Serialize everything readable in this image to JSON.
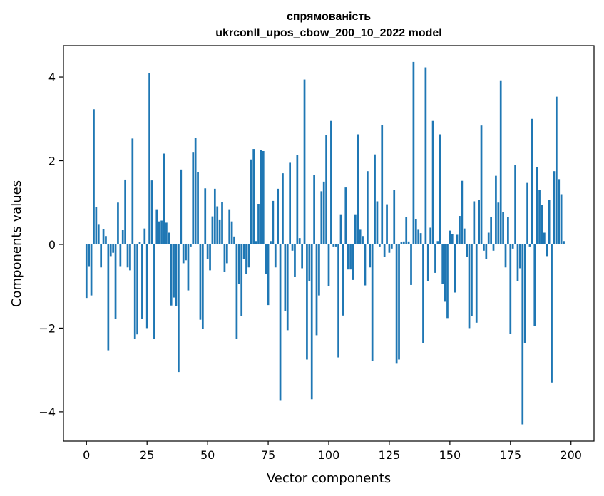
{
  "chart_data": {
    "type": "bar",
    "title_line1": "спрямованість",
    "title_line2": "ukrconll_upos_cbow_200_10_2022 model",
    "xlabel": "Vector components",
    "ylabel": "Components values",
    "xlim": [
      -9.5,
      209.5
    ],
    "ylim": [
      -4.7,
      4.75
    ],
    "xticks": [
      0,
      25,
      50,
      75,
      100,
      125,
      150,
      175,
      200
    ],
    "yticks": [
      -4,
      -2,
      0,
      2,
      4
    ],
    "ytick_labels": [
      "−4",
      "−2",
      "0",
      "2",
      "4"
    ],
    "grid": false,
    "color": "#1f77b4",
    "values": [
      -1.28,
      -0.52,
      -1.22,
      3.23,
      0.9,
      0.47,
      -0.55,
      0.36,
      0.2,
      -2.53,
      -0.28,
      -0.2,
      -1.78,
      1.0,
      -0.52,
      0.34,
      1.55,
      -0.55,
      -0.62,
      2.53,
      -2.25,
      -2.15,
      0.05,
      -1.78,
      0.38,
      -2.0,
      4.1,
      1.53,
      -2.25,
      0.84,
      0.55,
      0.57,
      2.17,
      0.52,
      0.28,
      -1.46,
      -1.27,
      -1.48,
      -3.05,
      1.79,
      -0.45,
      -0.38,
      -1.1,
      -0.05,
      2.21,
      2.55,
      1.72,
      -1.8,
      -2.01,
      1.34,
      -0.35,
      -0.62,
      0.67,
      1.33,
      0.91,
      0.58,
      1.02,
      -0.65,
      -0.45,
      0.84,
      0.55,
      0.19,
      -2.25,
      -0.95,
      -1.72,
      -0.35,
      -0.7,
      -0.55,
      2.03,
      2.28,
      0.08,
      0.97,
      2.25,
      2.23,
      -0.7,
      -1.45,
      0.08,
      1.04,
      -0.55,
      1.33,
      -3.72,
      1.7,
      -1.6,
      -2.05,
      1.95,
      -0.15,
      -0.78,
      2.14,
      0.15,
      -0.57,
      3.94,
      -2.75,
      -0.88,
      -3.7,
      1.66,
      -2.17,
      -1.22,
      1.27,
      1.5,
      2.62,
      -1.0,
      2.95,
      -0.05,
      -0.05,
      -2.7,
      0.72,
      -1.7,
      1.36,
      -0.6,
      -0.6,
      -0.85,
      0.72,
      2.63,
      0.35,
      0.2,
      -0.98,
      1.75,
      -0.55,
      -2.78,
      2.15,
      1.03,
      -0.05,
      2.86,
      -0.3,
      0.96,
      -0.2,
      -0.1,
      1.3,
      -2.85,
      -2.75,
      0.05,
      0.07,
      0.65,
      0.07,
      -0.97,
      4.36,
      0.6,
      0.35,
      0.27,
      -2.35,
      4.23,
      -0.88,
      0.4,
      2.95,
      -0.68,
      0.08,
      2.63,
      -0.95,
      -1.37,
      -1.76,
      0.33,
      0.25,
      -1.15,
      0.23,
      0.68,
      1.52,
      0.38,
      -0.3,
      -2.0,
      -1.72,
      1.03,
      -1.87,
      1.07,
      2.84,
      -0.15,
      -0.35,
      0.28,
      0.65,
      -0.15,
      1.64,
      1.0,
      3.92,
      0.78,
      -0.55,
      0.65,
      -2.13,
      -0.1,
      1.89,
      -0.87,
      -0.57,
      -4.3,
      -2.35,
      1.47,
      -0.05,
      3.0,
      -1.95,
      1.85,
      1.31,
      0.95,
      0.28,
      -0.28,
      1.06,
      -3.3,
      1.75,
      3.53,
      1.56,
      1.2,
      0.08
    ]
  }
}
